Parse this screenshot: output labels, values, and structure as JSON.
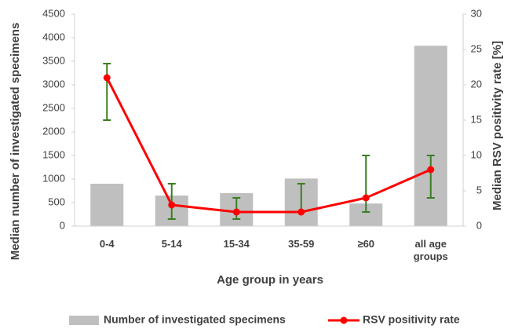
{
  "chart_data": {
    "type": "bar",
    "categories": [
      "0-4",
      "5-14",
      "15-34",
      "35-59",
      "≥60",
      "all age groups"
    ],
    "x_label": "Age group in years",
    "y_label": "Median number of investigated specimens",
    "y2_label": "Median RSV positivity rate [%]",
    "ylim": [
      0,
      4500
    ],
    "yticks": [
      0,
      500,
      1000,
      1500,
      2000,
      2500,
      3000,
      3500,
      4000,
      4500
    ],
    "y2lim": [
      0,
      30
    ],
    "y2ticks": [
      0,
      5,
      10,
      15,
      20,
      25,
      30
    ],
    "grid": false,
    "series": [
      {
        "name": "Number of investigated specimens",
        "type": "bar",
        "color": "#bfbfbf",
        "values": [
          900,
          650,
          700,
          1010,
          480,
          3830
        ]
      },
      {
        "name": "RSV positivity rate",
        "type": "line",
        "axis": "y2",
        "color": "#ff0000",
        "error_color": "#3a7d22",
        "values": [
          21,
          3,
          2,
          2,
          4,
          8
        ],
        "error_upper": [
          23,
          6,
          4,
          6,
          10,
          10
        ],
        "error_lower": [
          15,
          1,
          1,
          2,
          2,
          4
        ]
      }
    ]
  }
}
